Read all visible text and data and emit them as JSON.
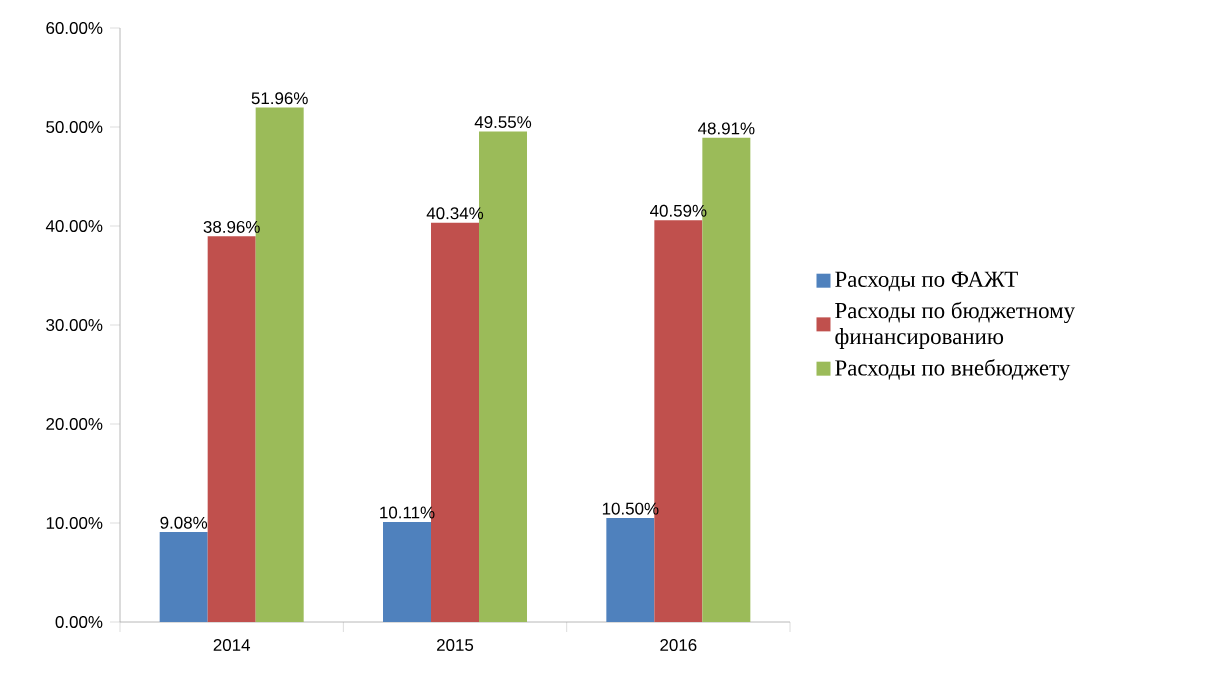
{
  "chart_data": {
    "type": "bar",
    "categories": [
      "2014",
      "2015",
      "2016"
    ],
    "series": [
      {
        "name": "Расходы по ФАЖТ",
        "color": "#4f81bd",
        "values": [
          9.08,
          10.11,
          10.5
        ],
        "value_labels": [
          "9.08%",
          "10.11%",
          "10.50%"
        ]
      },
      {
        "name": "Расходы по бюджетному финансированию",
        "color": "#c0504d",
        "values": [
          38.96,
          40.34,
          40.59
        ],
        "value_labels": [
          "38.96%",
          "40.34%",
          "40.59%"
        ]
      },
      {
        "name": "Расходы по внебюджету",
        "color": "#9bbb59",
        "values": [
          51.96,
          49.55,
          48.91
        ],
        "value_labels": [
          "51.96%",
          "49.55%",
          "48.91%"
        ]
      }
    ],
    "ylim": [
      0,
      60
    ],
    "yticks": [
      {
        "value": 0,
        "label": "0.00%"
      },
      {
        "value": 10,
        "label": "10.00%"
      },
      {
        "value": 20,
        "label": "20.00%"
      },
      {
        "value": 30,
        "label": "30.00%"
      },
      {
        "value": 40,
        "label": "40.00%"
      },
      {
        "value": 50,
        "label": "50.00%"
      },
      {
        "value": 60,
        "label": "60.00%"
      }
    ],
    "legend": "right",
    "grid": false
  }
}
